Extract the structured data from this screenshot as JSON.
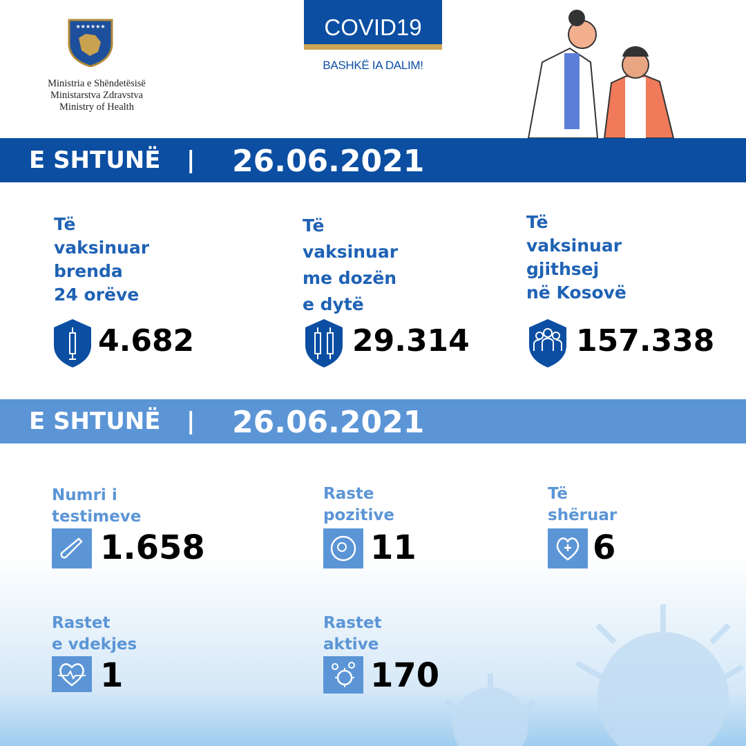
{
  "header": {
    "ministry_lines": [
      "Ministria e Shëndetësisë",
      "Ministarstva Zdravstva",
      "Ministry of Health"
    ],
    "campaign_title": "COVID19",
    "campaign_motto": "BASHKË IA DALIM!"
  },
  "vaccination": {
    "day": "E SHTUNË",
    "separator": "|",
    "date": "26.06.2021",
    "stats": [
      {
        "label_lines": [
          "Të",
          "vaksinuar",
          "brenda",
          "24 orëve"
        ],
        "value": "4.682",
        "icon": "syringe-shield-icon"
      },
      {
        "label_lines": [
          "Të",
          "vaksinuar",
          "me dozën",
          "e dytë"
        ],
        "value": "29.314",
        "icon": "two-syringes-shield-icon"
      },
      {
        "label_lines": [
          "Të",
          "vaksinuar",
          "gjithsej",
          "në Kosovë"
        ],
        "value": "157.338",
        "icon": "people-shield-icon"
      }
    ]
  },
  "cases": {
    "day": "E SHTUNË",
    "separator": "|",
    "date": "26.06.2021",
    "stats": [
      {
        "label_lines": [
          "Numri i",
          "testimeve"
        ],
        "value": "1.658",
        "icon": "test-tube-icon"
      },
      {
        "label_lines": [
          "Raste",
          "pozitive"
        ],
        "value": "11",
        "icon": "virus-petri-icon"
      },
      {
        "label_lines": [
          "Të",
          "shëruar"
        ],
        "value": "6",
        "icon": "heart-plus-icon"
      },
      {
        "label_lines": [
          "Rastet",
          "e vdekjes"
        ],
        "value": "1",
        "icon": "heartbeat-icon"
      },
      {
        "label_lines": [
          "Rastet",
          "aktive"
        ],
        "value": "170",
        "icon": "virus-icon"
      }
    ]
  },
  "colors": {
    "dark_blue": "#0b4ea2",
    "light_blue": "#5b95d6",
    "gold": "#cda552"
  }
}
